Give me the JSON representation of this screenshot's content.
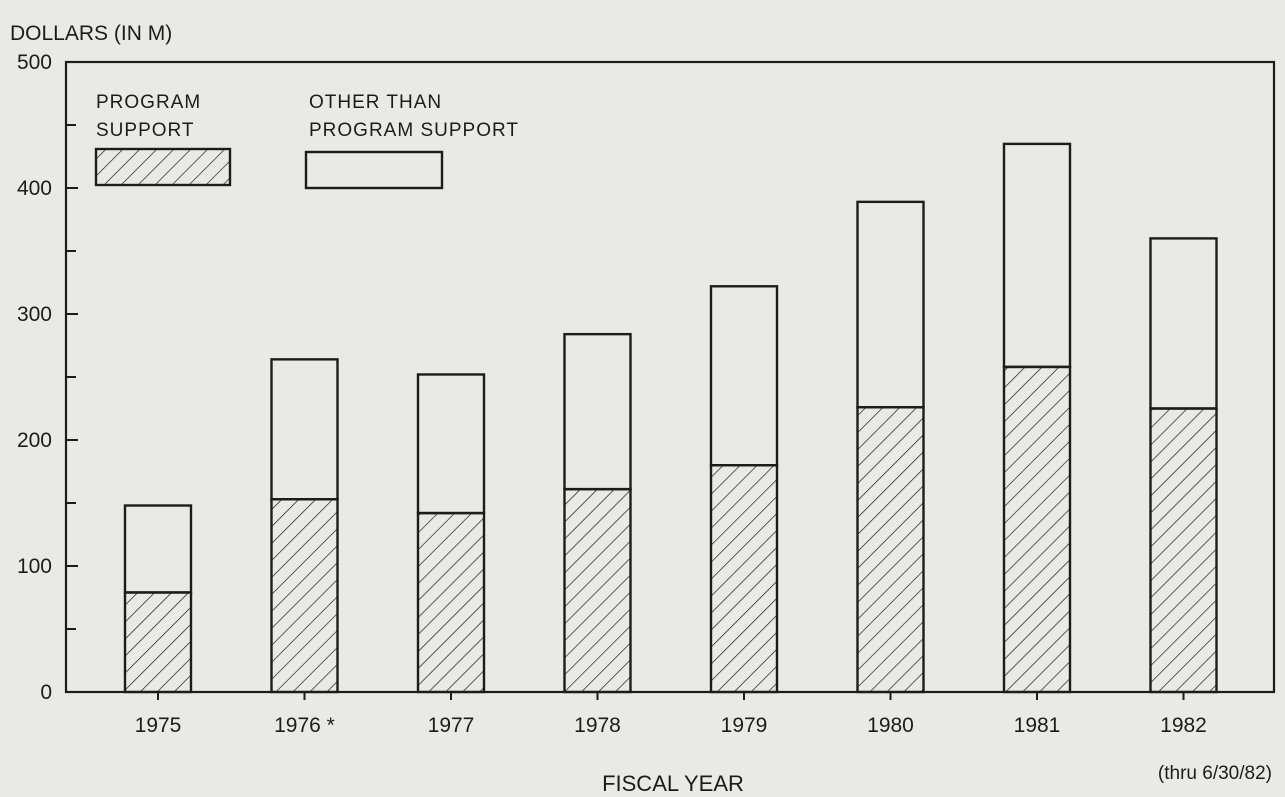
{
  "chart_data": {
    "type": "bar",
    "stacked": true,
    "ylabel": "DOLLARS (IN M)",
    "xlabel": "FISCAL YEAR",
    "ylim": [
      0,
      500
    ],
    "y_ticks": [
      "0",
      "100",
      "200",
      "300",
      "400",
      "500"
    ],
    "categories": [
      "1975",
      "1976 *",
      "1977",
      "1978",
      "1979",
      "1980",
      "1981",
      "1982"
    ],
    "category_note": "(thru 6/30/82)",
    "series": [
      {
        "name": "PROGRAM SUPPORT",
        "legend_lines": [
          "PROGRAM",
          "SUPPORT"
        ],
        "pattern": "hatched",
        "values": [
          79,
          153,
          142,
          161,
          180,
          226,
          258,
          225
        ]
      },
      {
        "name": "OTHER THAN PROGRAM SUPPORT",
        "legend_lines": [
          "OTHER THAN",
          "PROGRAM SUPPORT"
        ],
        "pattern": "open",
        "values": [
          69,
          111,
          110,
          123,
          142,
          163,
          177,
          135
        ]
      }
    ],
    "legend_position": "top-left",
    "grid": false,
    "colors": {
      "ink": "#1c1c1c",
      "paper": "#e9e9e6"
    }
  }
}
